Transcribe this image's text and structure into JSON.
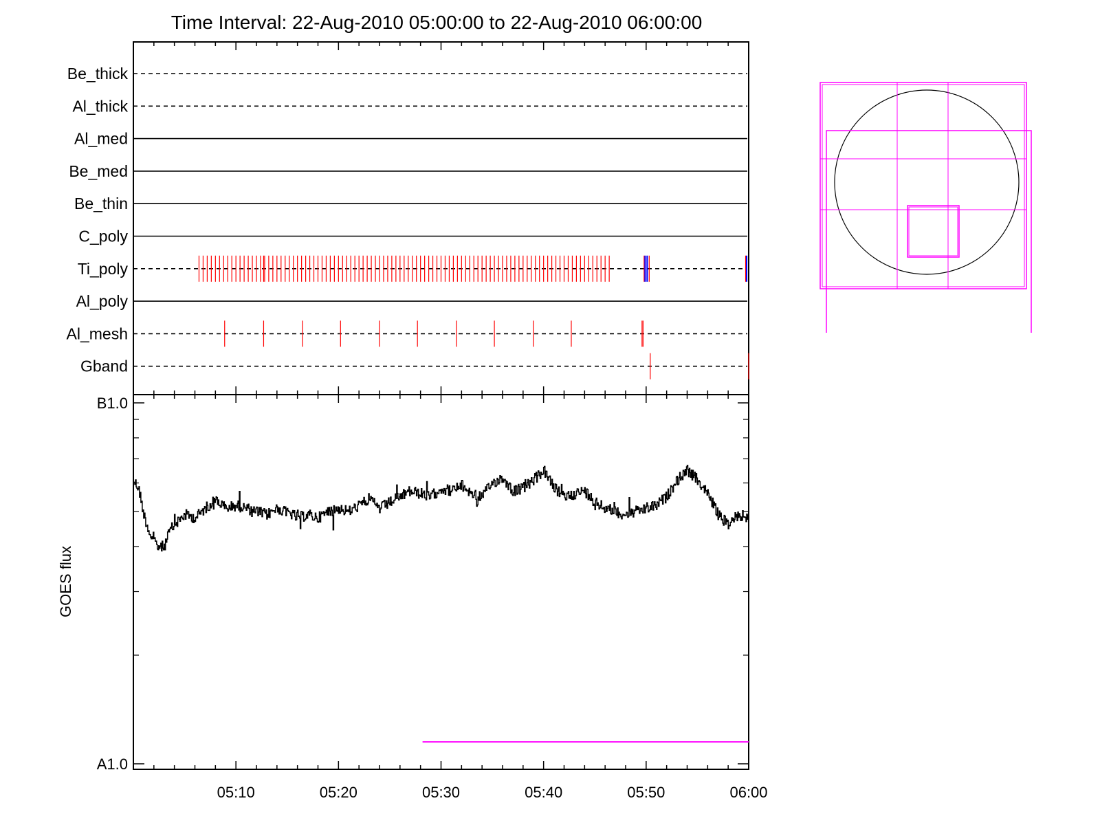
{
  "chart_data": [
    {
      "type": "timeline",
      "title": "Time Interval: 22-Aug-2010 05:00:00 to 22-Aug-2010 06:00:00",
      "x_range": [
        "05:00",
        "06:00"
      ],
      "rows": [
        {
          "label": "Be_thick",
          "style": "dashed",
          "events": [],
          "blue_events": []
        },
        {
          "label": "Al_thick",
          "style": "dashed",
          "events": [],
          "blue_events": []
        },
        {
          "label": "Al_med",
          "style": "solid",
          "events": [],
          "blue_events": []
        },
        {
          "label": "Be_med",
          "style": "solid",
          "events": [],
          "blue_events": []
        },
        {
          "label": "Be_thin",
          "style": "solid",
          "events": [],
          "blue_events": []
        },
        {
          "label": "C_poly",
          "style": "solid",
          "events": [],
          "blue_events": []
        },
        {
          "label": "Ti_poly",
          "style": "dashed",
          "events": [
            6.4,
            6.8,
            7.2,
            7.6,
            8.0,
            8.4,
            8.8,
            9.2,
            9.6,
            10.0,
            10.4,
            10.8,
            11.2,
            11.6,
            12.0,
            12.4,
            12.7,
            12.8,
            13.2,
            13.6,
            14.0,
            14.4,
            14.8,
            15.2,
            15.6,
            16.0,
            16.4,
            16.8,
            17.2,
            17.6,
            18.0,
            18.4,
            18.8,
            19.2,
            19.6,
            20.0,
            20.4,
            20.8,
            21.2,
            21.6,
            22.0,
            22.4,
            22.8,
            23.2,
            23.6,
            24.0,
            24.4,
            24.8,
            25.2,
            25.6,
            26.0,
            26.4,
            26.8,
            27.2,
            27.6,
            28.0,
            28.4,
            28.8,
            29.2,
            29.6,
            30.0,
            30.4,
            30.8,
            31.2,
            31.6,
            32.0,
            32.4,
            32.8,
            33.2,
            33.6,
            34.0,
            34.4,
            34.8,
            35.2,
            35.6,
            36.0,
            36.4,
            36.8,
            37.2,
            37.6,
            38.0,
            38.4,
            38.8,
            39.2,
            39.6,
            40.0,
            40.4,
            40.8,
            41.2,
            41.6,
            42.0,
            42.4,
            42.8,
            43.2,
            43.6,
            44.0,
            44.4,
            44.8,
            45.2,
            45.6,
            46.0,
            46.4,
            49.8,
            50.3,
            59.7
          ],
          "blue_events": [
            49.9,
            50.1,
            59.8
          ]
        },
        {
          "label": "Al_poly",
          "style": "solid",
          "events": [],
          "blue_events": []
        },
        {
          "label": "Al_mesh",
          "style": "dashed",
          "events": [
            8.9,
            12.7,
            16.5,
            20.2,
            24.0,
            27.7,
            31.5,
            35.2,
            39.0,
            42.7,
            49.6,
            49.7
          ],
          "blue_events": []
        },
        {
          "label": "Gband",
          "style": "dashed",
          "events": [
            50.4,
            60.0
          ],
          "blue_events": []
        }
      ]
    },
    {
      "type": "line",
      "ylabel": "GOES flux",
      "y_scale": "log",
      "y_tick_labels": [
        "B1.0",
        "A1.0"
      ],
      "x_range": [
        "05:00",
        "06:00"
      ],
      "x_tick_labels": [
        "05:10",
        "05:20",
        "05:30",
        "05:40",
        "05:50",
        "06:00"
      ],
      "series": [
        {
          "color": "#000000",
          "x_minutes": [
            0,
            0.5,
            1,
            1.5,
            2,
            2.5,
            3,
            3.5,
            4,
            5,
            6,
            7,
            8,
            9,
            10,
            11,
            12,
            13,
            14,
            15,
            16,
            17,
            18,
            19,
            20,
            21,
            22,
            23,
            24,
            25,
            26,
            27,
            28,
            29,
            30,
            31,
            32,
            33,
            34,
            35,
            36,
            37,
            38,
            39,
            40,
            41,
            42,
            43,
            44,
            45,
            46,
            47,
            48,
            49,
            50,
            51,
            52,
            53,
            54,
            55,
            56,
            57,
            58,
            59,
            60
          ],
          "y_flux": [
            6.1e-08,
            5.8e-08,
            4.9e-08,
            4.4e-08,
            4.1e-08,
            4e-08,
            4e-08,
            4.4e-08,
            4.6e-08,
            4.9e-08,
            4.8e-08,
            5.1e-08,
            5.4e-08,
            5.1e-08,
            5.2e-08,
            5.1e-08,
            5e-08,
            4.9e-08,
            5.1e-08,
            5e-08,
            4.8e-08,
            4.9e-08,
            4.8e-08,
            5e-08,
            5.1e-08,
            5e-08,
            5.2e-08,
            5.4e-08,
            5.1e-08,
            5.3e-08,
            5.5e-08,
            5.7e-08,
            5.6e-08,
            5.5e-08,
            5.8e-08,
            5.7e-08,
            5.9e-08,
            5.6e-08,
            5.5e-08,
            6e-08,
            6.2e-08,
            5.7e-08,
            5.8e-08,
            6.1e-08,
            6.5e-08,
            5.8e-08,
            5.5e-08,
            5.6e-08,
            5.7e-08,
            5.3e-08,
            5.1e-08,
            5e-08,
            4.9e-08,
            5e-08,
            5.1e-08,
            5.2e-08,
            5.5e-08,
            6.1e-08,
            6.5e-08,
            6.1e-08,
            5.6e-08,
            4.9e-08,
            4.6e-08,
            4.9e-08,
            4.8e-08
          ]
        },
        {
          "color": "#ff00ff",
          "x_minutes": [
            28.2,
            60
          ],
          "y_flux": [
            1.15e-08,
            1.15e-08
          ]
        }
      ]
    },
    {
      "type": "diagram",
      "description_colors": {
        "disk": "#000000",
        "boxes": "#ff00ff"
      }
    }
  ]
}
